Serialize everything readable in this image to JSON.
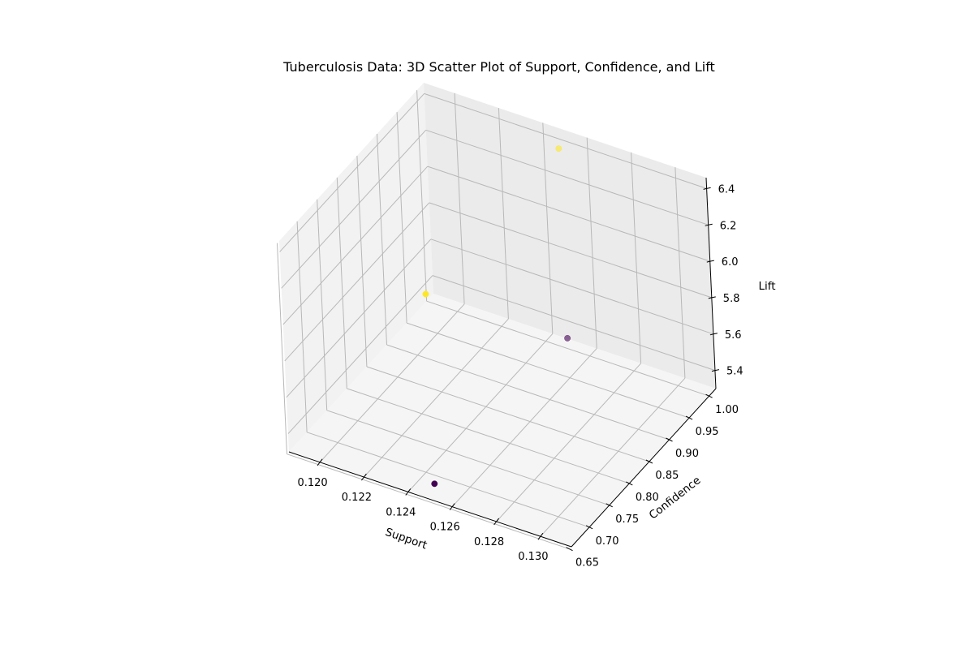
{
  "chart_data": {
    "type": "scatter",
    "projection": "3d",
    "title": "Tuberculosis Data: 3D Scatter Plot of Support, Confidence, and Lift",
    "xlabel": "Support",
    "ylabel": "Confidence",
    "zlabel": "Lift",
    "xlim": [
      0.1186,
      0.1314
    ],
    "ylim": [
      0.655,
      1.017
    ],
    "zlim": [
      5.3,
      6.46
    ],
    "xticks": [
      "0.120",
      "0.122",
      "0.124",
      "0.126",
      "0.128",
      "0.130"
    ],
    "yticks": [
      "0.65",
      "0.70",
      "0.75",
      "0.80",
      "0.85",
      "0.90",
      "0.95",
      "1.00"
    ],
    "zticks": [
      "5.4",
      "5.6",
      "5.8",
      "6.0",
      "6.2",
      "6.4"
    ],
    "grid": true,
    "colormap": "viridis",
    "points": [
      {
        "x": 0.125,
        "y": 0.667,
        "z": 5.357,
        "color": "#440154",
        "alpha": 1.0
      },
      {
        "x": 0.125,
        "y": 1.0,
        "z": 5.357,
        "color": "#440154",
        "alpha": 0.6
      },
      {
        "x": 0.125,
        "y": 1.0,
        "z": 6.4,
        "color": "#fde725",
        "alpha": 0.6
      },
      {
        "x": 0.125,
        "y": 0.667,
        "z": 6.4,
        "color": "#fde725",
        "alpha": 1.0
      }
    ],
    "pane_color": "#f2f2f2",
    "grid_color": "#b8b8b8"
  }
}
